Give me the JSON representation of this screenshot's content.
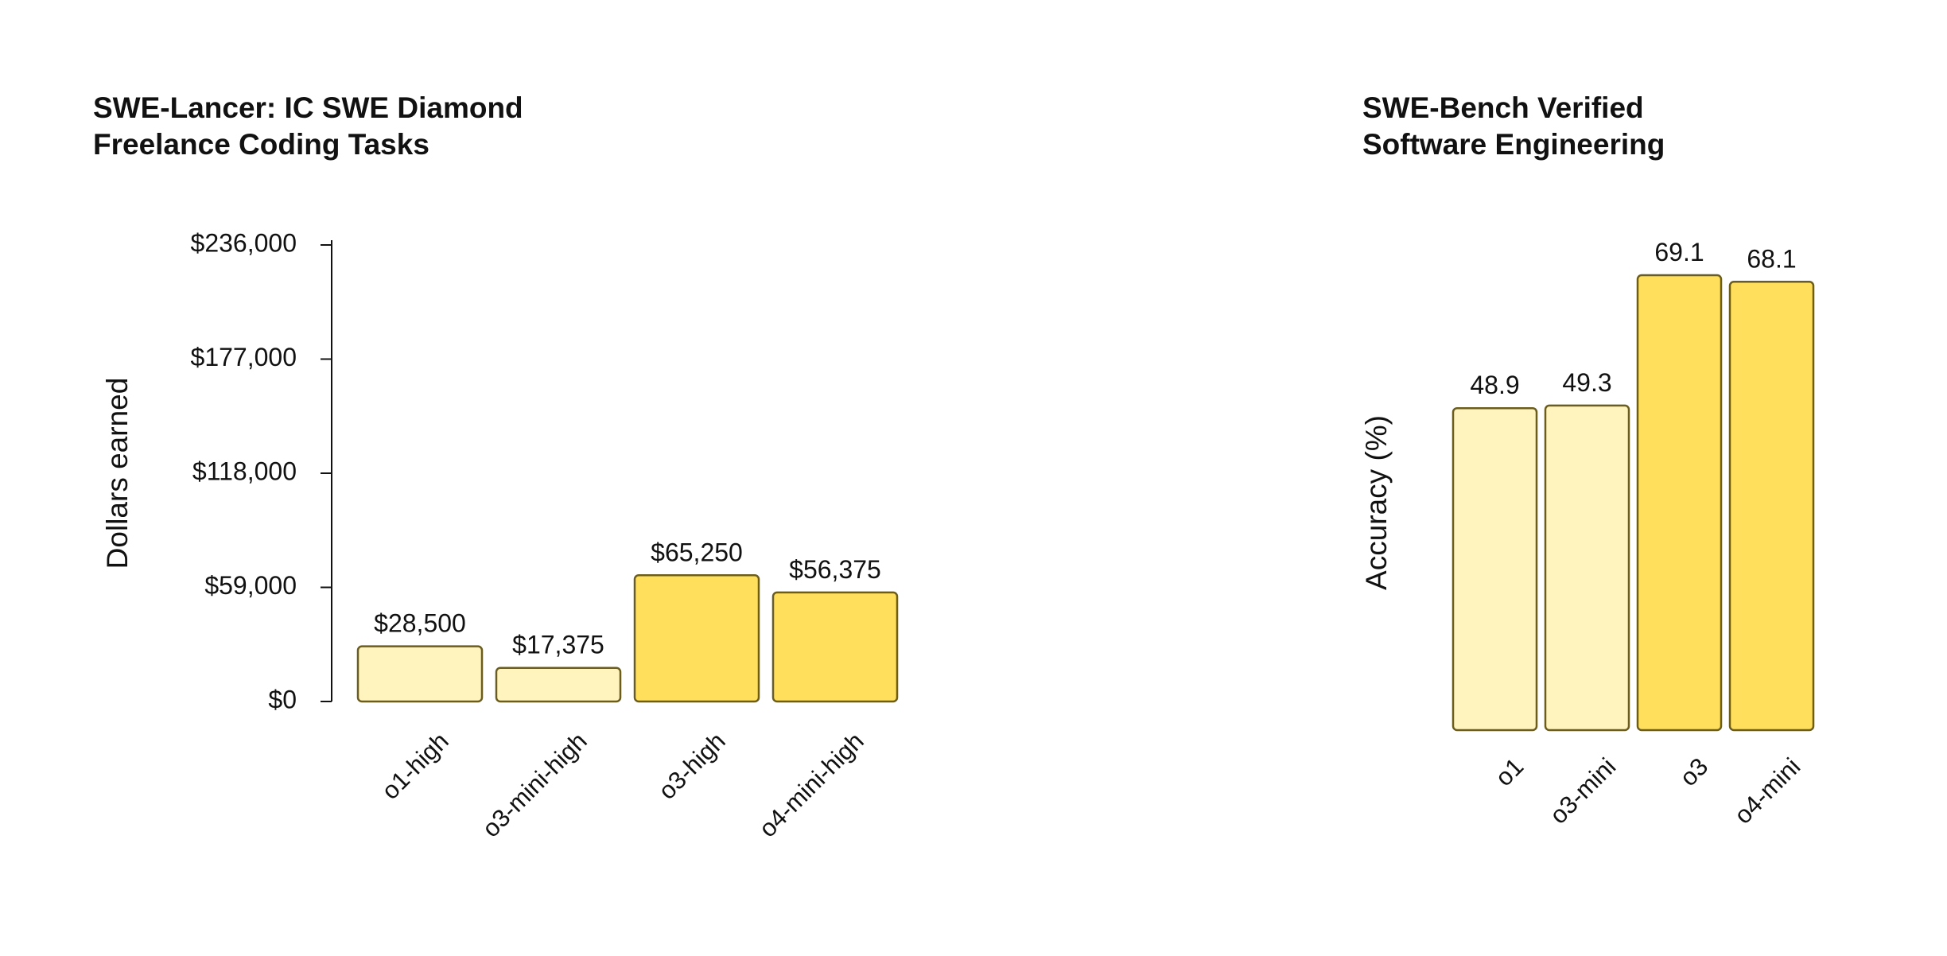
{
  "chart_data": [
    {
      "type": "bar",
      "title_lines": [
        "SWE-Lancer: IC SWE Diamond",
        "Freelance Coding Tasks"
      ],
      "ylabel": "Dollars earned",
      "categories": [
        "o1-high",
        "o3-mini-high",
        "o3-high",
        "o4-mini-high"
      ],
      "values": [
        28500,
        17375,
        65250,
        56375
      ],
      "value_labels": [
        "$28,500",
        "$17,375",
        "$65,250",
        "$56,375"
      ],
      "colors": [
        "#FFF3BE",
        "#FFF3BE",
        "#FFDF5C",
        "#FFDF5C"
      ],
      "ylim": [
        0,
        236000
      ],
      "yticks": [
        0,
        59000,
        118000,
        177000,
        236000
      ],
      "ytick_labels": [
        "$0",
        "$59,000",
        "$118,000",
        "$177,000",
        "$236,000"
      ],
      "show_y_axis": true,
      "grid": false
    },
    {
      "type": "bar",
      "title_lines": [
        "SWE-Bench Verified",
        "Software Engineering"
      ],
      "ylabel": "Accuracy (%)",
      "categories": [
        "o1",
        "o3-mini",
        "o3",
        "o4-mini"
      ],
      "values": [
        48.9,
        49.3,
        69.1,
        68.1
      ],
      "value_labels": [
        "48.9",
        "49.3",
        "69.1",
        "68.1"
      ],
      "colors": [
        "#FFF3BE",
        "#FFF3BE",
        "#FFDF5C",
        "#FFDF5C"
      ],
      "ylim": [
        0,
        69.1
      ],
      "yticks": [],
      "ytick_labels": [],
      "show_y_axis": false,
      "grid": false
    }
  ]
}
